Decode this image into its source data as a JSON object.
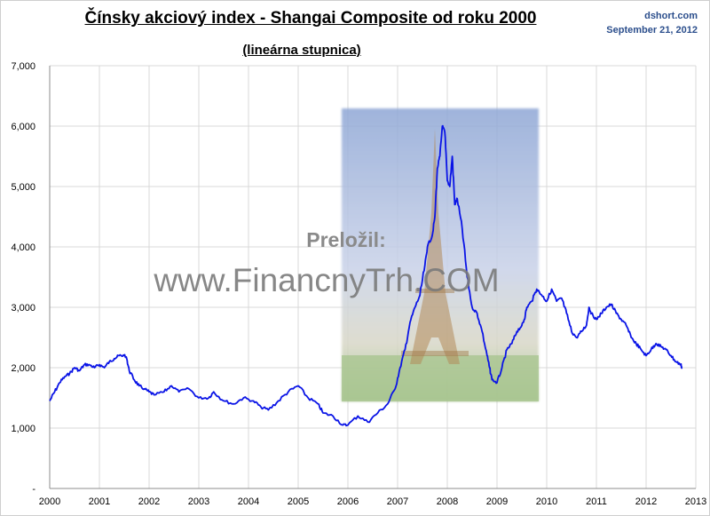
{
  "header": {
    "title": "Čínsky akciový index - Shangai Composite od roku 2000",
    "subtitle": "(lineárna stupnica)",
    "source": "dshort.com",
    "date": "September 21, 2012"
  },
  "watermark": {
    "label": "Preložil:",
    "url": "www.FinancnyTrh.COM",
    "image": "eiffel-tower-photo"
  },
  "colors": {
    "line": "#0a14e6",
    "grid": "#d9d9d9",
    "source_text": "#2b4e8c"
  },
  "chart_data": {
    "type": "line",
    "title": "Čínsky akciový index - Shangai Composite od roku 2000",
    "subtitle": "(lineárna stupnica)",
    "xlabel": "",
    "ylabel": "",
    "xlim": [
      2000,
      2013
    ],
    "ylim": [
      0,
      7000
    ],
    "x_ticks": [
      "2000",
      "2001",
      "2002",
      "2003",
      "2004",
      "2005",
      "2006",
      "2007",
      "2008",
      "2009",
      "2010",
      "2011",
      "2012",
      "2013"
    ],
    "y_ticks": [
      "-",
      "1,000",
      "2,000",
      "3,000",
      "4,000",
      "5,000",
      "6,000",
      "7,000"
    ],
    "grid": true,
    "series": [
      {
        "x": [
          2000.0,
          2000.1,
          2000.2,
          2000.3,
          2000.4,
          2000.5,
          2000.6,
          2000.7,
          2000.8,
          2000.9,
          2001.0,
          2001.1,
          2001.2,
          2001.3,
          2001.4,
          2001.5,
          2001.55,
          2001.6,
          2001.7,
          2001.8,
          2001.9,
          2002.0,
          2002.1,
          2002.3,
          2002.45,
          2002.6,
          2002.8,
          2003.0,
          2003.2,
          2003.3,
          2003.5,
          2003.7,
          2003.9,
          2004.1,
          2004.25,
          2004.4,
          2004.6,
          2004.8,
          2005.0,
          2005.2,
          2005.4,
          2005.5,
          2005.7,
          2005.9,
          2006.0,
          2006.2,
          2006.4,
          2006.6,
          2006.8,
          2006.95,
          2007.05,
          2007.15,
          2007.25,
          2007.35,
          2007.45,
          2007.55,
          2007.6,
          2007.7,
          2007.75,
          2007.8,
          2007.85,
          2007.9,
          2007.95,
          2008.0,
          2008.05,
          2008.1,
          2008.15,
          2008.2,
          2008.3,
          2008.4,
          2008.5,
          2008.6,
          2008.7,
          2008.8,
          2008.85,
          2008.9,
          2009.0,
          2009.1,
          2009.2,
          2009.3,
          2009.4,
          2009.5,
          2009.55,
          2009.6,
          2009.7,
          2009.8,
          2009.9,
          2010.0,
          2010.1,
          2010.2,
          2010.3,
          2010.4,
          2010.5,
          2010.6,
          2010.7,
          2010.8,
          2010.85,
          2010.9,
          2011.0,
          2011.1,
          2011.2,
          2011.3,
          2011.4,
          2011.5,
          2011.6,
          2011.7,
          2011.8,
          2011.9,
          2012.0,
          2012.1,
          2012.2,
          2012.3,
          2012.4,
          2012.5,
          2012.6,
          2012.7,
          2012.72
        ],
        "y": [
          1450,
          1600,
          1750,
          1850,
          1900,
          2000,
          1950,
          2050,
          2050,
          2000,
          2050,
          2000,
          2100,
          2150,
          2200,
          2200,
          2150,
          1950,
          1800,
          1700,
          1650,
          1600,
          1550,
          1600,
          1700,
          1600,
          1650,
          1500,
          1500,
          1600,
          1450,
          1400,
          1500,
          1450,
          1350,
          1300,
          1450,
          1600,
          1700,
          1500,
          1400,
          1250,
          1200,
          1050,
          1050,
          1200,
          1100,
          1250,
          1400,
          1650,
          2000,
          2300,
          2750,
          3000,
          3200,
          3700,
          4000,
          4200,
          4500,
          5300,
          5500,
          6000,
          5900,
          5100,
          5000,
          5500,
          4700,
          4800,
          4300,
          3500,
          3000,
          2900,
          2600,
          2200,
          2000,
          1800,
          1750,
          2000,
          2300,
          2400,
          2600,
          2700,
          2800,
          3000,
          3100,
          3300,
          3200,
          3100,
          3300,
          3100,
          3150,
          2900,
          2600,
          2500,
          2600,
          2700,
          3000,
          2900,
          2800,
          2900,
          3000,
          3050,
          2900,
          2800,
          2700,
          2500,
          2400,
          2300,
          2200,
          2300,
          2400,
          2350,
          2300,
          2200,
          2100,
          2050,
          2000
        ]
      }
    ]
  }
}
